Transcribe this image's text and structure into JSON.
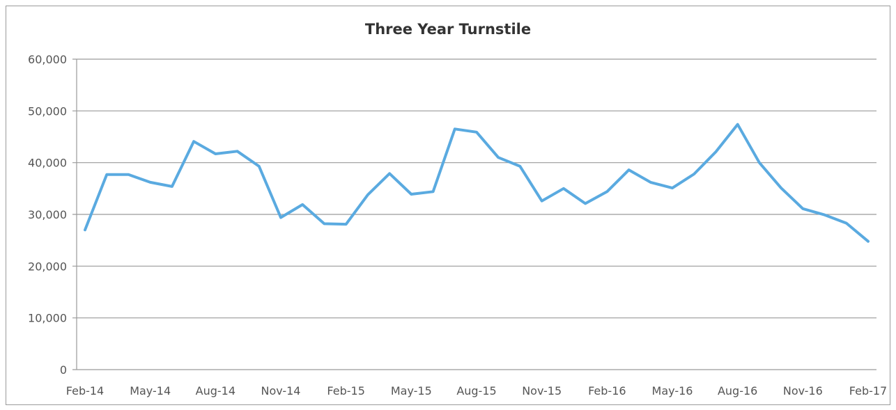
{
  "chart_data": {
    "type": "line",
    "title": "Three Year Turnstile",
    "xlabel": "",
    "ylabel": "",
    "ylim": [
      0,
      60000
    ],
    "yticks": [
      "0",
      "10,000",
      "20,000",
      "30,000",
      "40,000",
      "50,000",
      "60,000"
    ],
    "x": [
      "Feb-14",
      "Mar-14",
      "Apr-14",
      "May-14",
      "Jun-14",
      "Jul-14",
      "Aug-14",
      "Sep-14",
      "Oct-14",
      "Nov-14",
      "Dec-14",
      "Jan-15",
      "Feb-15",
      "Mar-15",
      "Apr-15",
      "May-15",
      "Jun-15",
      "Jul-15",
      "Aug-15",
      "Sep-15",
      "Oct-15",
      "Nov-15",
      "Dec-15",
      "Jan-16",
      "Feb-16",
      "Mar-16",
      "Apr-16",
      "May-16",
      "Jun-16",
      "Jul-16",
      "Aug-16",
      "Sep-16",
      "Oct-16",
      "Nov-16",
      "Dec-16",
      "Jan-17",
      "Feb-17"
    ],
    "xtick_labels": [
      "Feb-14",
      "May-14",
      "Aug-14",
      "Nov-14",
      "Feb-15",
      "May-15",
      "Aug-15",
      "Nov-15",
      "Feb-16",
      "May-16",
      "Aug-16",
      "Nov-16",
      "Feb-17"
    ],
    "series": [
      {
        "values": [
          27000,
          37700,
          37700,
          36200,
          35400,
          44100,
          41700,
          42200,
          39300,
          29400,
          31900,
          28200,
          28100,
          33800,
          37900,
          33900,
          34400,
          46500,
          45900,
          41000,
          39300,
          32600,
          35000,
          32100,
          34400,
          38600,
          36200,
          35100,
          37800,
          42100,
          47400,
          40000,
          35100,
          31100,
          29900,
          28300,
          24800
        ]
      }
    ],
    "grid": true,
    "legend": "none",
    "colors": {
      "line": "#5aaae0",
      "grid": "#9a9a9a",
      "axis_text": "#555555",
      "title": "#333333"
    }
  }
}
